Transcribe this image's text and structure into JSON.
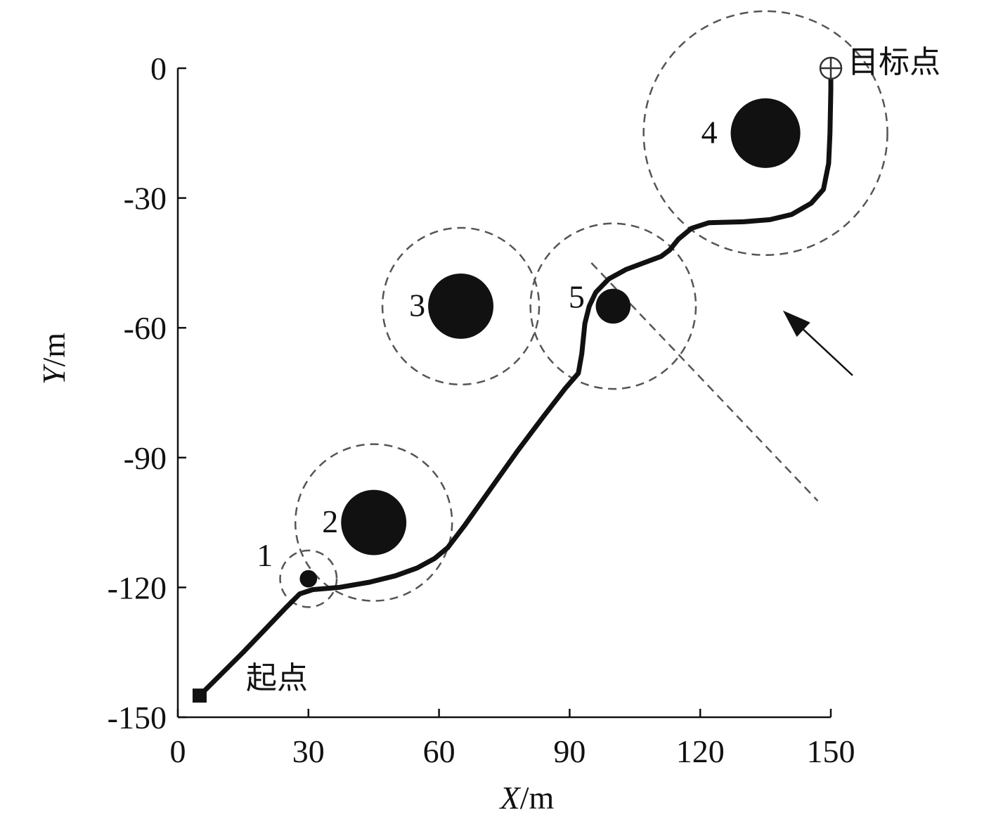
{
  "chart_data": {
    "type": "scatter",
    "title": "",
    "xlabel": {
      "var": "X",
      "unit": "/m"
    },
    "ylabel": {
      "var": "Y",
      "unit": "/m"
    },
    "xlim": [
      0,
      150
    ],
    "ylim": [
      -150,
      0
    ],
    "xticks": [
      "0",
      "30",
      "60",
      "90",
      "120",
      "150"
    ],
    "yticks": [
      "0",
      "-30",
      "-60",
      "-90",
      "-120",
      "-150"
    ],
    "grid": false,
    "obstacles": [
      {
        "label": "1",
        "cx": 30,
        "cy": -118,
        "r": 2,
        "safe_r": 6.5
      },
      {
        "label": "2",
        "cx": 45,
        "cy": -105,
        "r": 7.5,
        "safe_r": 18
      },
      {
        "label": "3",
        "cx": 65,
        "cy": -55,
        "r": 7.5,
        "safe_r": 18
      },
      {
        "label": "4",
        "cx": 135,
        "cy": -15,
        "r": 8,
        "safe_r": 28
      },
      {
        "label": "5",
        "cx": 100,
        "cy": -55,
        "r": 4,
        "safe_r": 19
      }
    ],
    "start": {
      "label": "起点",
      "x": 5,
      "y": -145
    },
    "goal": {
      "label": "目标点",
      "x": 150,
      "y": 0
    },
    "path": [
      [
        5,
        -145
      ],
      [
        15,
        -135
      ],
      [
        25,
        -124.5
      ],
      [
        28,
        -121.5
      ],
      [
        31,
        -120.5
      ],
      [
        37,
        -120
      ],
      [
        44,
        -118.8
      ],
      [
        50,
        -117.3
      ],
      [
        55,
        -115.5
      ],
      [
        59,
        -113.3
      ],
      [
        62,
        -110.8
      ],
      [
        66,
        -105.5
      ],
      [
        72,
        -97
      ],
      [
        78,
        -88.5
      ],
      [
        84,
        -80.5
      ],
      [
        89,
        -74
      ],
      [
        92,
        -70.5
      ],
      [
        92.8,
        -66
      ],
      [
        93.5,
        -59
      ],
      [
        94.5,
        -55
      ],
      [
        96,
        -51.8
      ],
      [
        99,
        -48.7
      ],
      [
        103,
        -46.5
      ],
      [
        107,
        -45
      ],
      [
        111,
        -43.5
      ],
      [
        113,
        -42
      ],
      [
        115,
        -39.5
      ],
      [
        118,
        -37
      ],
      [
        122,
        -35.7
      ],
      [
        130,
        -35.5
      ],
      [
        136,
        -35
      ],
      [
        141,
        -33.8
      ],
      [
        145.5,
        -31.2
      ],
      [
        148.3,
        -28
      ],
      [
        149.5,
        -22
      ],
      [
        149.8,
        -15
      ],
      [
        150,
        -5
      ],
      [
        150,
        -2
      ]
    ],
    "dashed_line": [
      [
        95,
        -45
      ],
      [
        147,
        -100
      ]
    ],
    "arrow": {
      "from": [
        155,
        -71
      ],
      "to": [
        139,
        -56
      ]
    }
  }
}
